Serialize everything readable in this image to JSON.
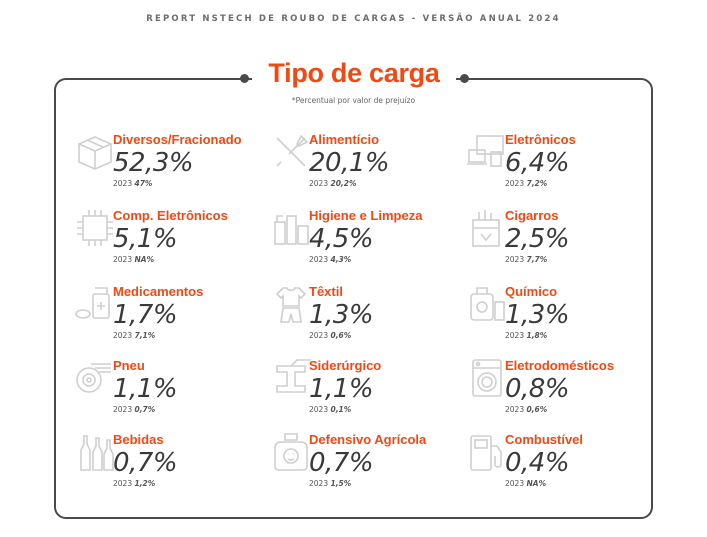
{
  "header": "REPORT NSTECH DE ROUBO DE CARGAS - VERSÃO ANUAL 2024",
  "title": "Tipo de carga",
  "subtitle": "*Percentual por valor de prejuízo",
  "items": [
    {
      "label": "Diversos/Fracionado",
      "value": "52,3%",
      "prev_label": "2023",
      "prev_value": "47%",
      "icon": "box-icon"
    },
    {
      "label": "Alimentício",
      "value": "20,1%",
      "prev_label": "2023",
      "prev_value": "20,2%",
      "icon": "cutlery-icon"
    },
    {
      "label": "Eletrônicos",
      "value": "6,4%",
      "prev_label": "2023",
      "prev_value": "7,2%",
      "icon": "devices-icon"
    },
    {
      "label": "Comp. Eletrônicos",
      "value": "5,1%",
      "prev_label": "2023",
      "prev_value": "NA%",
      "icon": "chip-icon"
    },
    {
      "label": "Higiene e Limpeza",
      "value": "4,5%",
      "prev_label": "2023",
      "prev_value": "4,3%",
      "icon": "cleaning-icon"
    },
    {
      "label": "Cigarros",
      "value": "2,5%",
      "prev_label": "2023",
      "prev_value": "7,7%",
      "icon": "cigarettes-icon"
    },
    {
      "label": "Medicamentos",
      "value": "1,7%",
      "prev_label": "2023",
      "prev_value": "7,1%",
      "icon": "medicine-icon"
    },
    {
      "label": "Têxtil",
      "value": "1,3%",
      "prev_label": "2023",
      "prev_value": "0,6%",
      "icon": "clothes-icon"
    },
    {
      "label": "Químico",
      "value": "1,3%",
      "prev_label": "2023",
      "prev_value": "1,8%",
      "icon": "chemical-icon"
    },
    {
      "label": "Pneu",
      "value": "1,1%",
      "prev_label": "2023",
      "prev_value": "0,7%",
      "icon": "tire-icon"
    },
    {
      "label": "Siderúrgico",
      "value": "1,1%",
      "prev_label": "2023",
      "prev_value": "0,1%",
      "icon": "steel-beam-icon"
    },
    {
      "label": "Eletrodomésticos",
      "value": "0,8%",
      "prev_label": "2023",
      "prev_value": "0,6%",
      "icon": "washing-machine-icon"
    },
    {
      "label": "Bebidas",
      "value": "0,7%",
      "prev_label": "2023",
      "prev_value": "1,2%",
      "icon": "bottles-icon"
    },
    {
      "label": "Defensivo Agrícola",
      "value": "0,7%",
      "prev_label": "2023",
      "prev_value": "1,5%",
      "icon": "pesticide-icon"
    },
    {
      "label": "Combustível",
      "value": "0,4%",
      "prev_label": "2023",
      "prev_value": "NA%",
      "icon": "fuel-pump-icon"
    }
  ]
}
